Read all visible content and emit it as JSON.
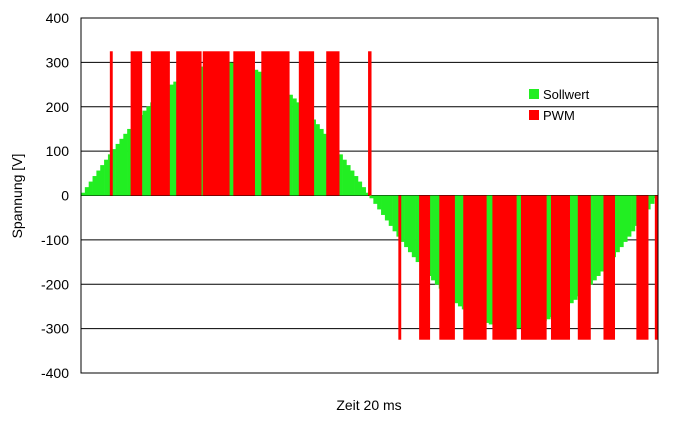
{
  "chart_data": {
    "type": "bar",
    "xlabel": "Zeit 20 ms",
    "ylabel": "Spannung [V]",
    "ylim": [
      -400,
      400
    ],
    "yticks": [
      400,
      300,
      200,
      100,
      0,
      -100,
      -200,
      -300,
      -400
    ],
    "grid": true,
    "legend": "right",
    "colors": {
      "sollwert": "#22ee22",
      "pwm": "#ff0000",
      "grid": "#000000",
      "background": "#ffffff"
    },
    "series": [
      {
        "name": "Sollwert",
        "kind": "sine-bars",
        "amplitude": 300,
        "period_ms": 20,
        "bar_count": 150
      },
      {
        "name": "PWM",
        "kind": "pulse-bars",
        "pulses": [
          {
            "start": 1.0,
            "end": 1.1,
            "value": 325
          },
          {
            "start": 1.72,
            "end": 2.12,
            "value": 325
          },
          {
            "start": 2.42,
            "end": 3.08,
            "value": 325
          },
          {
            "start": 3.3,
            "end": 4.18,
            "value": 325
          },
          {
            "start": 4.22,
            "end": 5.15,
            "value": 325
          },
          {
            "start": 5.28,
            "end": 6.03,
            "value": 325
          },
          {
            "start": 6.25,
            "end": 7.23,
            "value": 325
          },
          {
            "start": 7.55,
            "end": 8.08,
            "value": 325
          },
          {
            "start": 8.5,
            "end": 8.96,
            "value": 325
          },
          {
            "start": 9.95,
            "end": 10.07,
            "value": 325
          },
          {
            "start": 11.0,
            "end": 11.1,
            "value": -325
          },
          {
            "start": 11.72,
            "end": 12.1,
            "value": -325
          },
          {
            "start": 12.42,
            "end": 12.96,
            "value": -325
          },
          {
            "start": 13.25,
            "end": 14.06,
            "value": -325
          },
          {
            "start": 14.26,
            "end": 15.1,
            "value": -325
          },
          {
            "start": 15.25,
            "end": 16.14,
            "value": -325
          },
          {
            "start": 16.29,
            "end": 16.95,
            "value": -325
          },
          {
            "start": 17.22,
            "end": 17.67,
            "value": -325
          },
          {
            "start": 18.11,
            "end": 18.51,
            "value": -325
          },
          {
            "start": 19.25,
            "end": 19.67,
            "value": -325
          },
          {
            "start": 19.89,
            "end": 20.0,
            "value": -325
          }
        ]
      }
    ]
  }
}
